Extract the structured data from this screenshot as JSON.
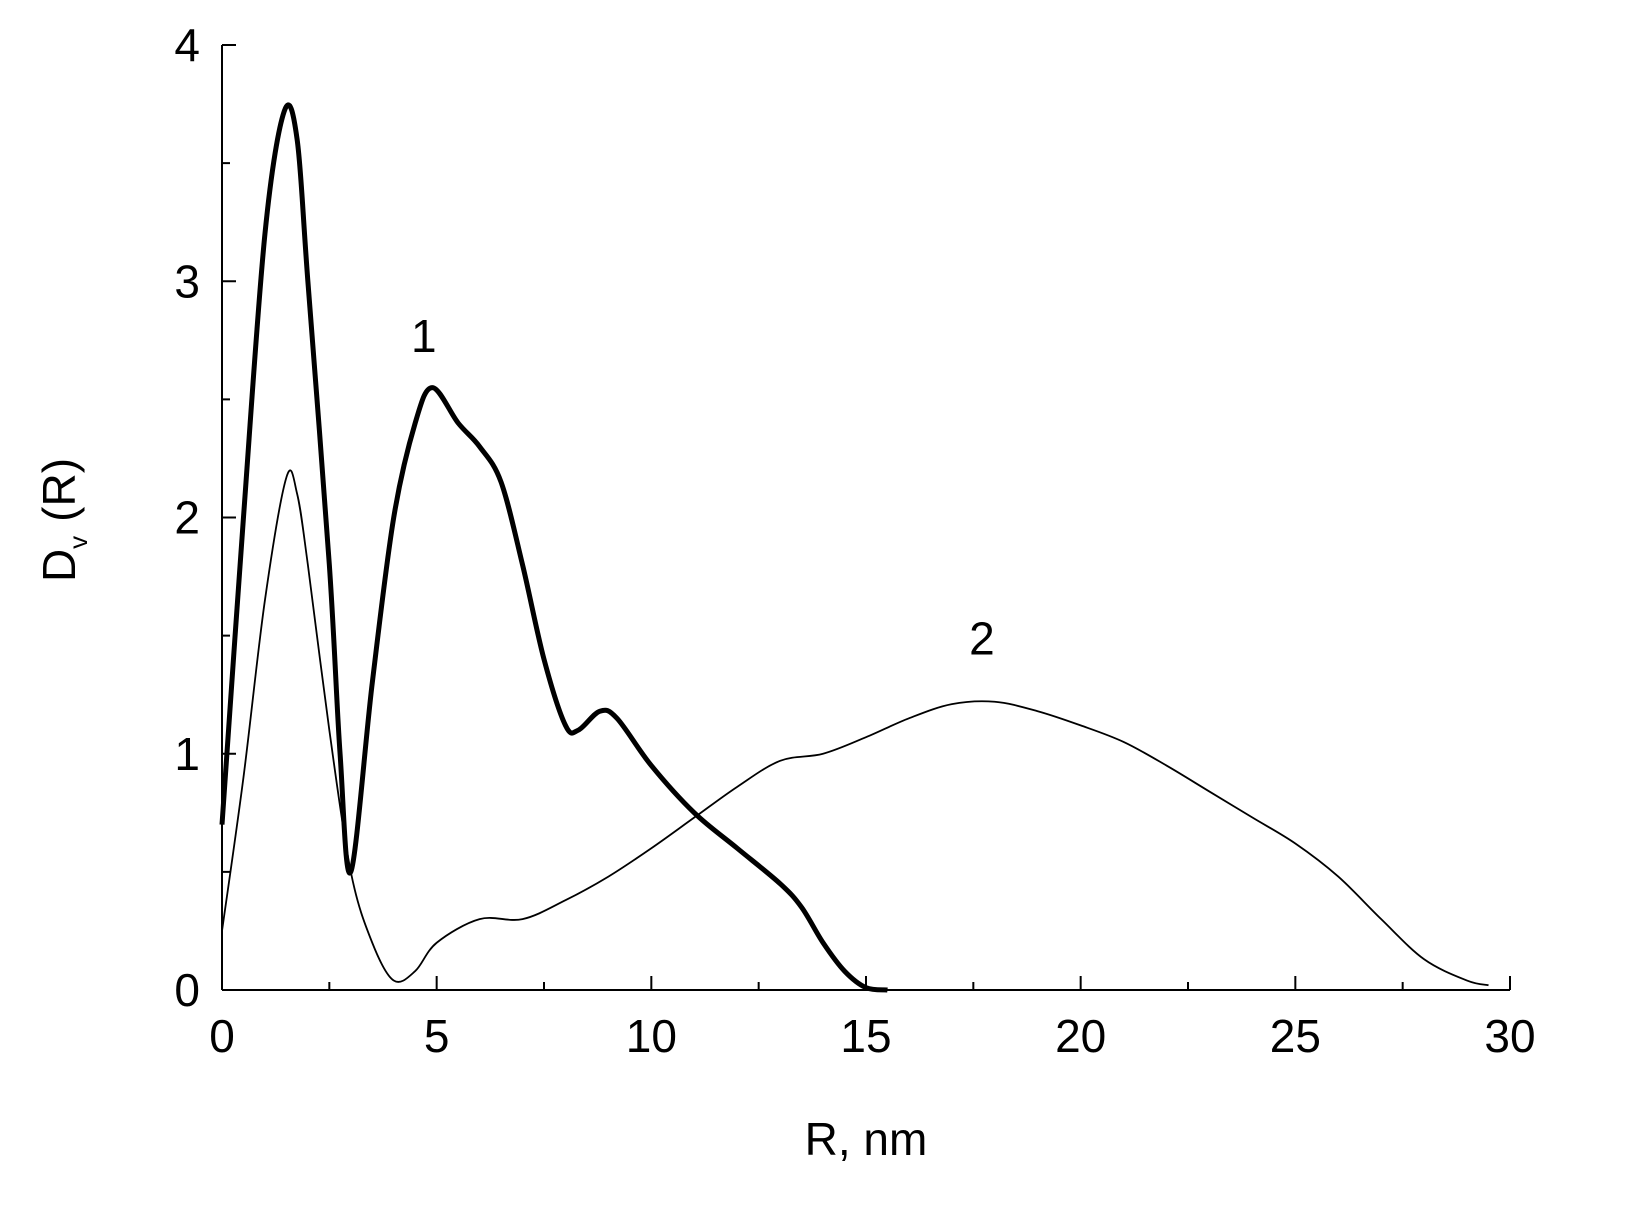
{
  "chart_data": {
    "type": "line",
    "xlabel": "R, nm",
    "ylabel": "D",
    "ylabel_sub": "v",
    "ylabel_rest": "(R)",
    "xlim": [
      0,
      30
    ],
    "xticks": [
      0,
      5,
      10,
      15,
      20,
      25,
      30
    ],
    "xminor": [
      2.5,
      7.5,
      12.5,
      17.5,
      22.5,
      27.5
    ],
    "ylim": [
      0,
      4
    ],
    "yticks": [
      0,
      1,
      2,
      3,
      4
    ],
    "yminor": [
      0.5,
      1.5,
      2.5,
      3.5
    ],
    "series": [
      {
        "name": "1",
        "color": "#000000",
        "width": 5,
        "label_x": 4.7,
        "label_y": 2.7,
        "x": [
          0,
          0.5,
          1,
          1.45,
          1.75,
          2,
          2.5,
          2.75,
          3,
          3.5,
          4,
          4.5,
          4.9,
          5.5,
          6,
          6.5,
          7,
          7.5,
          8,
          8.3,
          8.8,
          9.2,
          10,
          11,
          12,
          13,
          13.5,
          14,
          14.5,
          15,
          15.5
        ],
        "values": [
          0.7,
          2.0,
          3.2,
          3.72,
          3.6,
          3.0,
          1.8,
          1.0,
          0.5,
          1.3,
          2.0,
          2.4,
          2.55,
          2.4,
          2.3,
          2.15,
          1.8,
          1.4,
          1.12,
          1.1,
          1.18,
          1.15,
          0.95,
          0.75,
          0.6,
          0.45,
          0.35,
          0.2,
          0.08,
          0.01,
          0
        ]
      },
      {
        "name": "2",
        "color": "#000000",
        "width": 1.8,
        "label_x": 17.7,
        "label_y": 1.42,
        "x": [
          0,
          0.5,
          1,
          1.5,
          1.75,
          2,
          2.5,
          3,
          3.5,
          4,
          4.5,
          5,
          6,
          7,
          8,
          9,
          10,
          11,
          12,
          13,
          14,
          15,
          16,
          17,
          18,
          19,
          20,
          21,
          22,
          23,
          24,
          25,
          26,
          27,
          28,
          29,
          29.5
        ],
        "values": [
          0.25,
          0.9,
          1.65,
          2.17,
          2.1,
          1.8,
          1.1,
          0.5,
          0.2,
          0.04,
          0.08,
          0.2,
          0.3,
          0.3,
          0.38,
          0.48,
          0.6,
          0.73,
          0.86,
          0.97,
          1.0,
          1.07,
          1.15,
          1.21,
          1.22,
          1.18,
          1.12,
          1.05,
          0.95,
          0.84,
          0.73,
          0.62,
          0.48,
          0.3,
          0.13,
          0.04,
          0.02
        ]
      }
    ]
  }
}
